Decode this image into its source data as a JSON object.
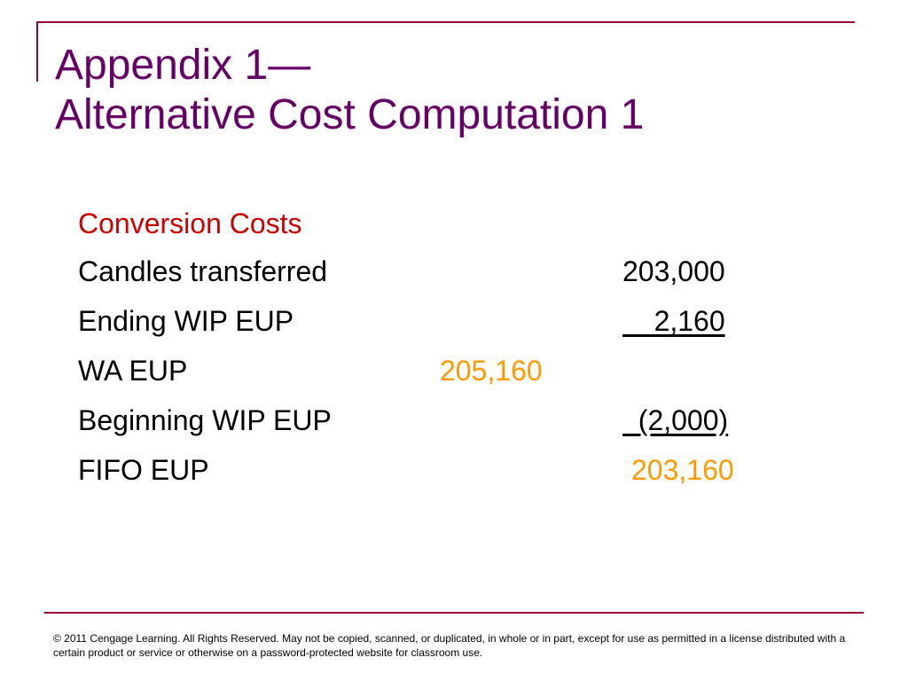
{
  "slide": {
    "title_line1": "Appendix 1—",
    "title_line2": "Alternative Cost Computation 1",
    "section_heading": "Conversion Costs",
    "rows": [
      {
        "label": "Candles transferred",
        "value": "203,000"
      },
      {
        "label": "Ending WIP EUP",
        "value": "    2,160"
      },
      {
        "label": "WA EUP",
        "value": "205,160"
      },
      {
        "label": "Beginning WIP EUP",
        "value": "  (2,000)"
      },
      {
        "label": "FIFO EUP",
        "value": "203,160"
      }
    ],
    "footer": "© 2011 Cengage Learning.  All Rights Reserved.  May not be copied, scanned, or duplicated, in whole or in part, except for use as permitted in a license distributed with a certain product or service or otherwise on a password-protected website for classroom use."
  },
  "colors": {
    "title": "#660066",
    "heading": "#cc0000",
    "accent_value": "#ff9900",
    "frame_rule": "#990033"
  }
}
